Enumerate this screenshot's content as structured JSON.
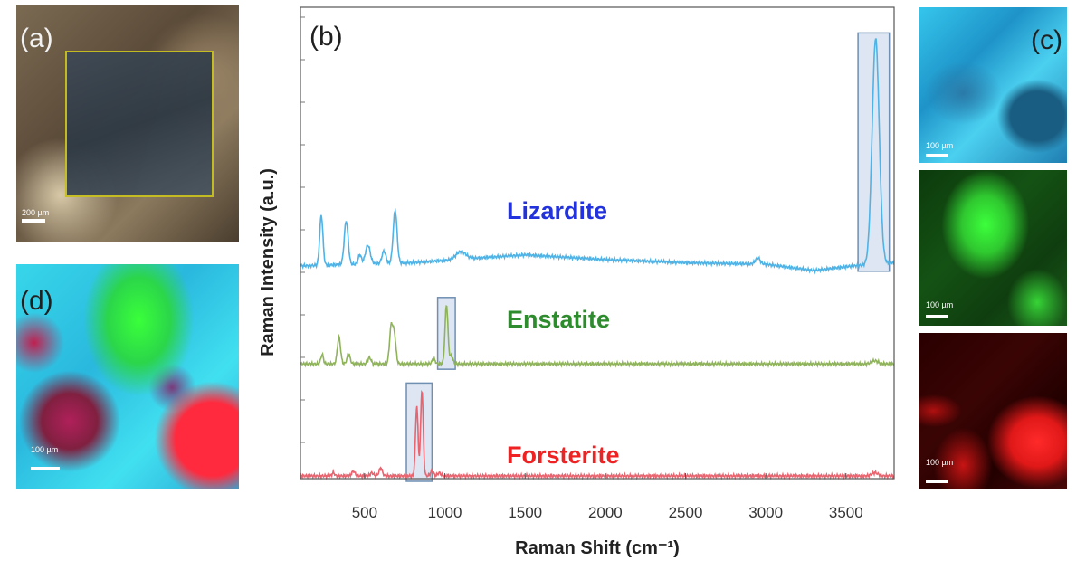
{
  "panels": {
    "a": {
      "label": "(a)",
      "scale": "200 µm"
    },
    "b": {
      "label": "(b)"
    },
    "c": {
      "label": "(c)",
      "scales": [
        "100 µm",
        "100 µm",
        "100 µm"
      ]
    },
    "d": {
      "label": "(d)",
      "scale": "100 µm"
    }
  },
  "colors": {
    "lizardite": "#4fb3e6",
    "enstatite": "#8fb35a",
    "forsterite": "#e8646f",
    "lizardite_label": "#2233dd",
    "enstatite_label": "#2e8b2e",
    "forsterite_label": "#ee2222",
    "band_fill": "#dde6f2",
    "band_stroke": "#6f8fb3"
  },
  "chart_data": {
    "type": "line",
    "title": "",
    "xlabel": "Raman Shift (cm⁻¹)",
    "ylabel": "Raman Intensity (a.u.)",
    "xlim": [
      100,
      3800
    ],
    "xticks": [
      500,
      1000,
      1500,
      2000,
      2500,
      3000,
      3500
    ],
    "grid": false,
    "series": [
      {
        "name": "Lizardite",
        "offset": 1.35,
        "baseline": [
          [
            100,
            0
          ],
          [
            800,
            0.02
          ],
          [
            1200,
            0.05
          ],
          [
            1500,
            0.07
          ],
          [
            2000,
            0.04
          ],
          [
            2500,
            0.02
          ],
          [
            3000,
            0.01
          ],
          [
            3300,
            -0.03
          ],
          [
            3550,
            0.0
          ],
          [
            3800,
            0.02
          ]
        ],
        "peaks": [
          [
            230,
            0.32,
            10
          ],
          [
            385,
            0.28,
            12
          ],
          [
            470,
            0.06,
            10
          ],
          [
            520,
            0.12,
            15
          ],
          [
            620,
            0.08,
            12
          ],
          [
            690,
            0.34,
            12
          ],
          [
            1100,
            0.05,
            30
          ],
          [
            2950,
            0.04,
            15
          ],
          [
            3685,
            1.45,
            22
          ]
        ],
        "highlight": [
          3575,
          3770
        ]
      },
      {
        "name": "Enstatite",
        "offset": 0.72,
        "baseline": [
          [
            100,
            0
          ],
          [
            3800,
            0
          ]
        ],
        "peaks": [
          [
            235,
            0.06,
            8
          ],
          [
            340,
            0.17,
            10
          ],
          [
            400,
            0.06,
            10
          ],
          [
            530,
            0.04,
            10
          ],
          [
            665,
            0.23,
            10
          ],
          [
            685,
            0.18,
            10
          ],
          [
            930,
            0.03,
            10
          ],
          [
            1010,
            0.38,
            9
          ],
          [
            1040,
            0.05,
            10
          ],
          [
            3680,
            0.02,
            20
          ]
        ],
        "highlight": [
          955,
          1065
        ]
      },
      {
        "name": "Forsterite",
        "offset": 0.0,
        "baseline": [
          [
            100,
            0
          ],
          [
            3800,
            0
          ]
        ],
        "peaks": [
          [
            305,
            0.02,
            8
          ],
          [
            430,
            0.03,
            10
          ],
          [
            545,
            0.02,
            10
          ],
          [
            600,
            0.05,
            10
          ],
          [
            825,
            0.45,
            8
          ],
          [
            857,
            0.55,
            8
          ],
          [
            920,
            0.03,
            10
          ],
          [
            965,
            0.02,
            10
          ],
          [
            3680,
            0.02,
            20
          ]
        ],
        "highlight": [
          760,
          920
        ]
      }
    ]
  }
}
